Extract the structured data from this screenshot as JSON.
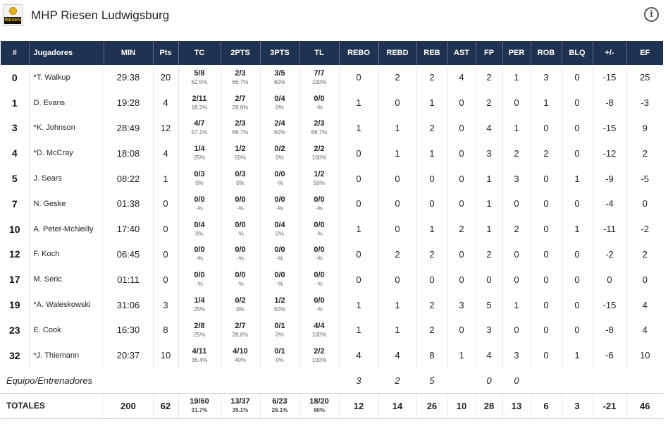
{
  "header": {
    "team_name": "MHP Riesen Ludwigsburg",
    "logo_text": "RIESEN",
    "info_icon": "i"
  },
  "columns": [
    "#",
    "Jugadores",
    "MIN",
    "Pts",
    "TC",
    "2PTS",
    "3PTS",
    "TL",
    "REBO",
    "REBD",
    "REB",
    "AST",
    "FP",
    "PER",
    "ROB",
    "BLQ",
    "+/-",
    "EF"
  ],
  "players": [
    {
      "num": "0",
      "name": "*T. Walkup",
      "min": "29:38",
      "pts": "20",
      "tc": "5/8",
      "tc_pct": "62.5%",
      "p2": "2/3",
      "p2_pct": "66.7%",
      "p3": "3/5",
      "p3_pct": "60%",
      "tl": "7/7",
      "tl_pct": "100%",
      "rebo": "0",
      "rebd": "2",
      "reb": "2",
      "ast": "4",
      "fp": "2",
      "per": "1",
      "rob": "3",
      "blq": "0",
      "pm": "-15",
      "ef": "25"
    },
    {
      "num": "1",
      "name": "D. Evans",
      "min": "19:28",
      "pts": "4",
      "tc": "2/11",
      "tc_pct": "18.2%",
      "p2": "2/7",
      "p2_pct": "28.6%",
      "p3": "0/4",
      "p3_pct": "0%",
      "tl": "0/0",
      "tl_pct": "-%",
      "rebo": "1",
      "rebd": "0",
      "reb": "1",
      "ast": "0",
      "fp": "2",
      "per": "0",
      "rob": "1",
      "blq": "0",
      "pm": "-8",
      "ef": "-3"
    },
    {
      "num": "3",
      "name": "*K. Johnson",
      "min": "28:49",
      "pts": "12",
      "tc": "4/7",
      "tc_pct": "57.1%",
      "p2": "2/3",
      "p2_pct": "66.7%",
      "p3": "2/4",
      "p3_pct": "50%",
      "tl": "2/3",
      "tl_pct": "66.7%",
      "rebo": "1",
      "rebd": "1",
      "reb": "2",
      "ast": "0",
      "fp": "4",
      "per": "1",
      "rob": "0",
      "blq": "0",
      "pm": "-15",
      "ef": "9"
    },
    {
      "num": "4",
      "name": "*D. McCray",
      "min": "18:08",
      "pts": "4",
      "tc": "1/4",
      "tc_pct": "25%",
      "p2": "1/2",
      "p2_pct": "50%",
      "p3": "0/2",
      "p3_pct": "0%",
      "tl": "2/2",
      "tl_pct": "100%",
      "rebo": "0",
      "rebd": "1",
      "reb": "1",
      "ast": "0",
      "fp": "3",
      "per": "2",
      "rob": "2",
      "blq": "0",
      "pm": "-12",
      "ef": "2"
    },
    {
      "num": "5",
      "name": "J. Sears",
      "min": "08:22",
      "pts": "1",
      "tc": "0/3",
      "tc_pct": "0%",
      "p2": "0/3",
      "p2_pct": "0%",
      "p3": "0/0",
      "p3_pct": "-%",
      "tl": "1/2",
      "tl_pct": "50%",
      "rebo": "0",
      "rebd": "0",
      "reb": "0",
      "ast": "0",
      "fp": "1",
      "per": "3",
      "rob": "0",
      "blq": "1",
      "pm": "-9",
      "ef": "-5"
    },
    {
      "num": "7",
      "name": "N. Geske",
      "min": "01:38",
      "pts": "0",
      "tc": "0/0",
      "tc_pct": "-%",
      "p2": "0/0",
      "p2_pct": "-%",
      "p3": "0/0",
      "p3_pct": "-%",
      "tl": "0/0",
      "tl_pct": "-%",
      "rebo": "0",
      "rebd": "0",
      "reb": "0",
      "ast": "0",
      "fp": "1",
      "per": "0",
      "rob": "0",
      "blq": "0",
      "pm": "-4",
      "ef": "0"
    },
    {
      "num": "10",
      "name": "A. Peter-McNeilly",
      "min": "17:40",
      "pts": "0",
      "tc": "0/4",
      "tc_pct": "0%",
      "p2": "0/0",
      "p2_pct": "-%",
      "p3": "0/4",
      "p3_pct": "0%",
      "tl": "0/0",
      "tl_pct": "-%",
      "rebo": "1",
      "rebd": "0",
      "reb": "1",
      "ast": "2",
      "fp": "1",
      "per": "2",
      "rob": "0",
      "blq": "1",
      "pm": "-11",
      "ef": "-2"
    },
    {
      "num": "12",
      "name": "F. Koch",
      "min": "06:45",
      "pts": "0",
      "tc": "0/0",
      "tc_pct": "-%",
      "p2": "0/0",
      "p2_pct": "-%",
      "p3": "0/0",
      "p3_pct": "-%",
      "tl": "0/0",
      "tl_pct": "-%",
      "rebo": "0",
      "rebd": "2",
      "reb": "2",
      "ast": "0",
      "fp": "2",
      "per": "0",
      "rob": "0",
      "blq": "0",
      "pm": "-2",
      "ef": "2"
    },
    {
      "num": "17",
      "name": "M. Seric",
      "min": "01:11",
      "pts": "0",
      "tc": "0/0",
      "tc_pct": "-%",
      "p2": "0/0",
      "p2_pct": "-%",
      "p3": "0/0",
      "p3_pct": "-%",
      "tl": "0/0",
      "tl_pct": "-%",
      "rebo": "0",
      "rebd": "0",
      "reb": "0",
      "ast": "0",
      "fp": "0",
      "per": "0",
      "rob": "0",
      "blq": "0",
      "pm": "0",
      "ef": "0"
    },
    {
      "num": "19",
      "name": "*A. Waleskowski",
      "min": "31:06",
      "pts": "3",
      "tc": "1/4",
      "tc_pct": "25%",
      "p2": "0/2",
      "p2_pct": "0%",
      "p3": "1/2",
      "p3_pct": "50%",
      "tl": "0/0",
      "tl_pct": "-%",
      "rebo": "1",
      "rebd": "1",
      "reb": "2",
      "ast": "3",
      "fp": "5",
      "per": "1",
      "rob": "0",
      "blq": "0",
      "pm": "-15",
      "ef": "4"
    },
    {
      "num": "23",
      "name": "E. Cook",
      "min": "16:30",
      "pts": "8",
      "tc": "2/8",
      "tc_pct": "25%",
      "p2": "2/7",
      "p2_pct": "28.6%",
      "p3": "0/1",
      "p3_pct": "0%",
      "tl": "4/4",
      "tl_pct": "100%",
      "rebo": "1",
      "rebd": "1",
      "reb": "2",
      "ast": "0",
      "fp": "3",
      "per": "0",
      "rob": "0",
      "blq": "0",
      "pm": "-8",
      "ef": "4"
    },
    {
      "num": "32",
      "name": "*J. Thiemann",
      "min": "20:37",
      "pts": "10",
      "tc": "4/11",
      "tc_pct": "36.4%",
      "p2": "4/10",
      "p2_pct": "40%",
      "p3": "0/1",
      "p3_pct": "0%",
      "tl": "2/2",
      "tl_pct": "100%",
      "rebo": "4",
      "rebd": "4",
      "reb": "8",
      "ast": "1",
      "fp": "4",
      "per": "3",
      "rob": "0",
      "blq": "1",
      "pm": "-6",
      "ef": "10"
    }
  ],
  "equipo": {
    "label": "Equipo/Entrenadores",
    "rebo": "3",
    "rebd": "2",
    "reb": "5",
    "fp": "0",
    "per": "0"
  },
  "totals": {
    "label": "TOTALES",
    "min": "200",
    "pts": "62",
    "tc": "19/60",
    "tc_pct": "31.7%",
    "p2": "13/37",
    "p2_pct": "35.1%",
    "p3": "6/23",
    "p3_pct": "26.1%",
    "tl": "18/20",
    "tl_pct": "90%",
    "rebo": "12",
    "rebd": "14",
    "reb": "26",
    "ast": "10",
    "fp": "28",
    "per": "13",
    "rob": "6",
    "blq": "3",
    "pm": "-21",
    "ef": "46"
  },
  "colors": {
    "header_bg": "#1f3250",
    "header_text": "#ffffff"
  }
}
